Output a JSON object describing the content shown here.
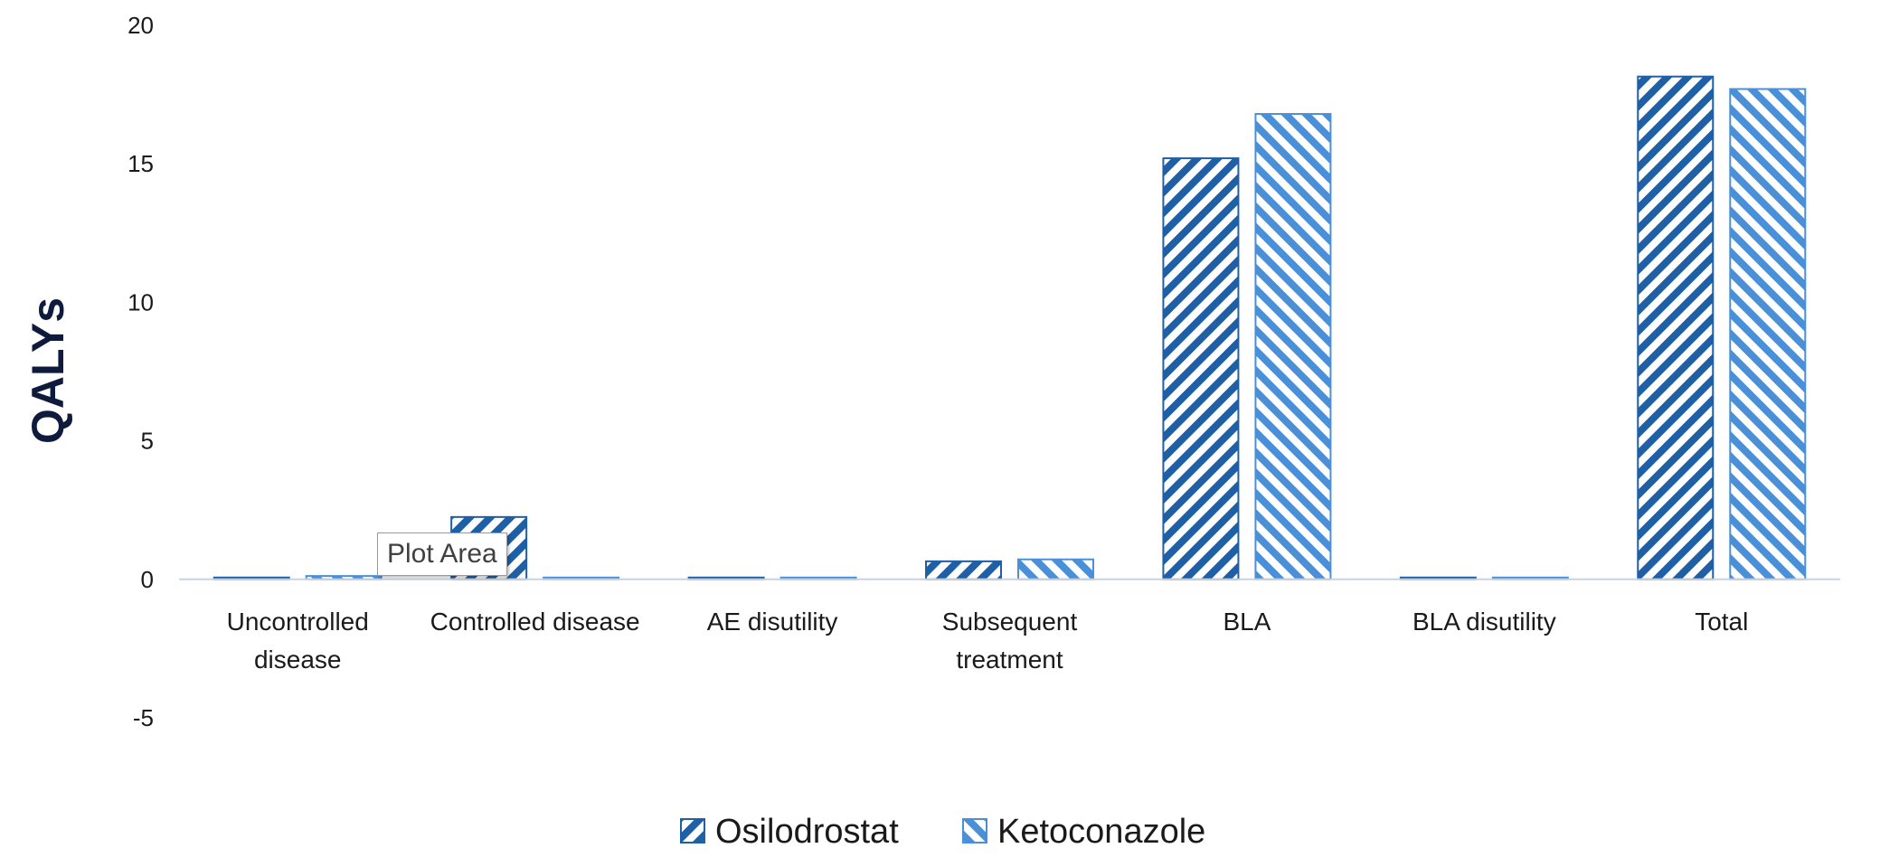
{
  "tooltip": {
    "text": "Plot Area"
  },
  "chart_data": {
    "type": "bar",
    "categories": [
      "Uncontrolled disease",
      "Controlled disease",
      "AE disutility",
      "Subsequent treatment",
      "BLA",
      "BLA disutility",
      "Total"
    ],
    "series": [
      {
        "name": "Osilodrostat",
        "values": [
          0.05,
          2.25,
          0.0,
          0.65,
          15.2,
          -0.05,
          18.15
        ],
        "color": "#1f5fa6",
        "pattern": "diagonal-up"
      },
      {
        "name": "Ketoconazole",
        "values": [
          0.12,
          0.05,
          0.0,
          0.72,
          16.8,
          -0.05,
          17.7
        ],
        "color": "#4a90d9",
        "pattern": "diagonal-down"
      }
    ],
    "title": "",
    "xlabel": "",
    "ylabel": "QALYs",
    "ylim": [
      -5,
      20
    ],
    "yticks": [
      -5,
      0,
      5,
      10,
      15,
      20
    ],
    "grid": false,
    "legend_position": "bottom-center"
  }
}
